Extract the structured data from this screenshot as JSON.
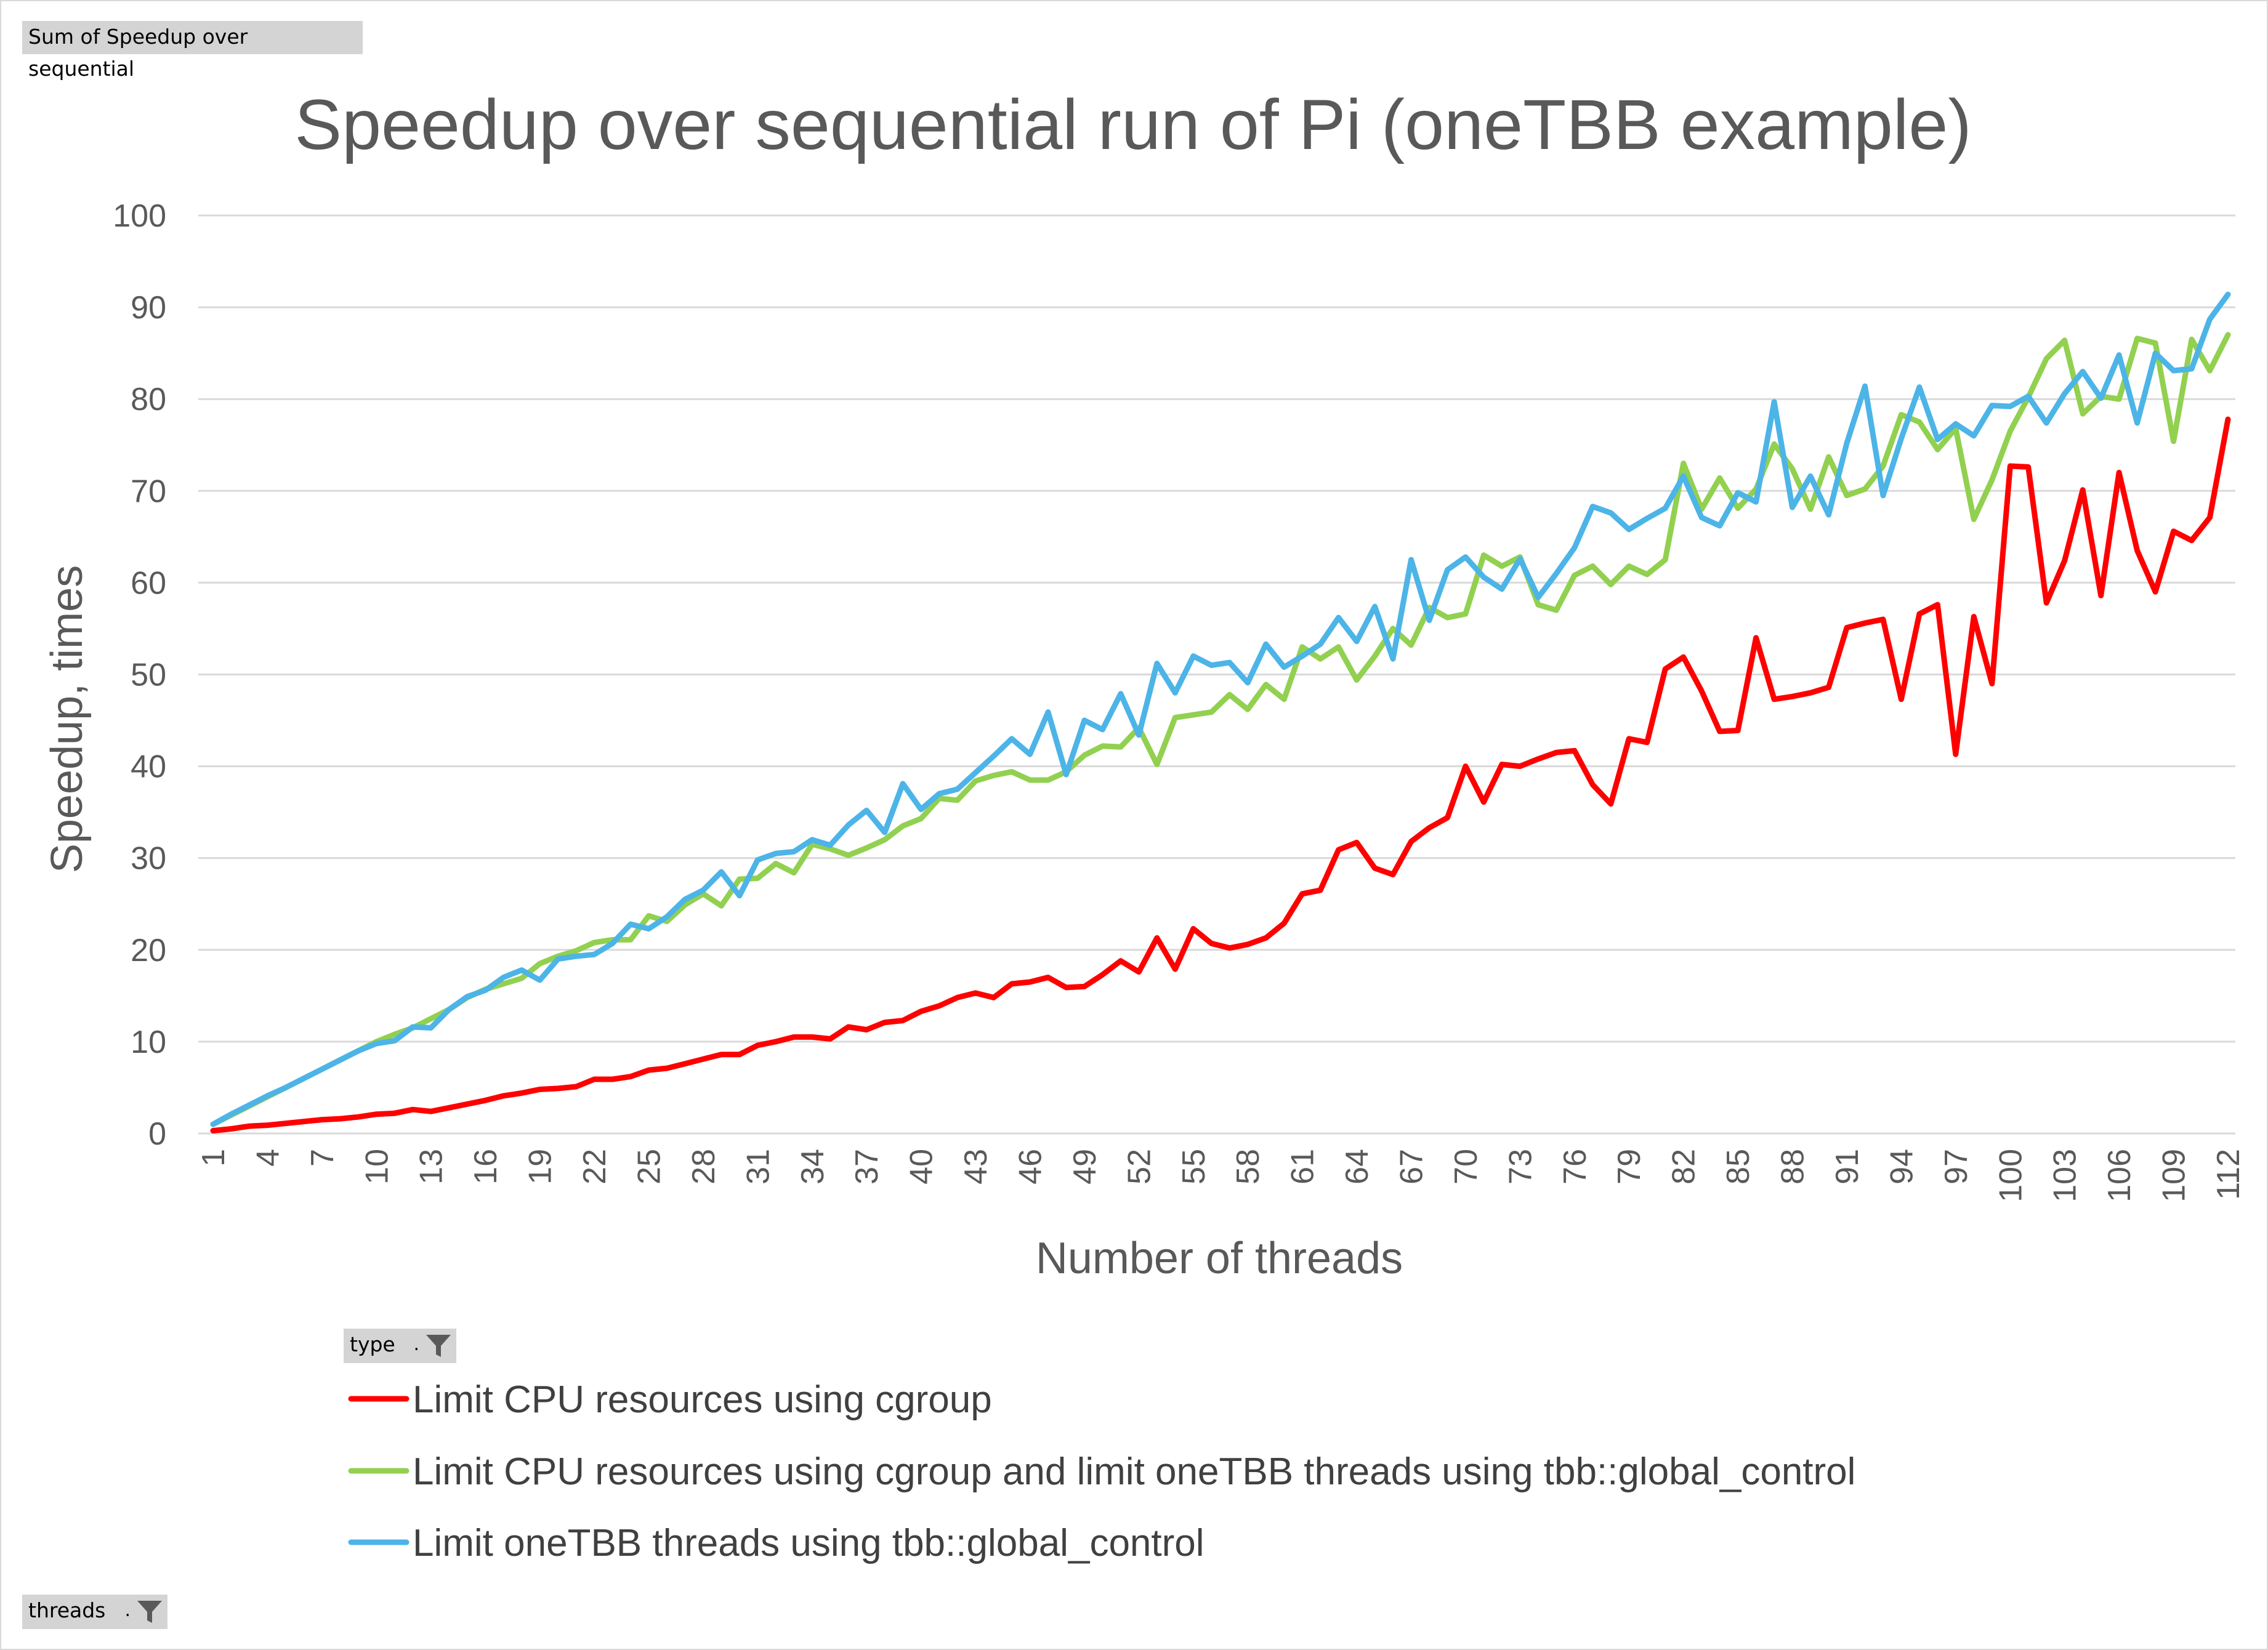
{
  "pivot": {
    "field_button": "Sum of Speedup  over sequential",
    "legend_filter_label": "type",
    "axis_filter_label": "threads"
  },
  "chart_data": {
    "type": "line",
    "title": "Speedup over sequential run of Pi (oneTBB example)",
    "xlabel": "Number of threads",
    "ylabel": "Speedup, times",
    "ylim": [
      0,
      100
    ],
    "yticks": [
      0,
      10,
      20,
      30,
      40,
      50,
      60,
      70,
      80,
      90,
      100
    ],
    "xtick_labels": [
      "1",
      "4",
      "7",
      "10",
      "13",
      "16",
      "19",
      "22",
      "25",
      "28",
      "31",
      "34",
      "37",
      "40",
      "43",
      "46",
      "49",
      "52",
      "55",
      "58",
      "61",
      "64",
      "67",
      "70",
      "73",
      "76",
      "79",
      "82",
      "85",
      "88",
      "91",
      "94",
      "97",
      "100",
      "103",
      "106",
      "109",
      "112"
    ],
    "grid": true,
    "legend_position": "bottom",
    "x": [
      1,
      2,
      3,
      4,
      5,
      6,
      7,
      8,
      9,
      10,
      11,
      12,
      13,
      14,
      15,
      16,
      17,
      18,
      19,
      20,
      21,
      22,
      23,
      24,
      25,
      26,
      27,
      28,
      29,
      30,
      31,
      32,
      33,
      34,
      35,
      36,
      37,
      38,
      39,
      40,
      41,
      42,
      43,
      44,
      45,
      46,
      47,
      48,
      49,
      50,
      51,
      52,
      53,
      54,
      55,
      56,
      57,
      58,
      59,
      60,
      61,
      62,
      63,
      64,
      65,
      66,
      67,
      68,
      69,
      70,
      71,
      72,
      73,
      74,
      75,
      76,
      77,
      78,
      79,
      80,
      81,
      82,
      83,
      84,
      85,
      86,
      87,
      88,
      89,
      90,
      91,
      92,
      93,
      94,
      95,
      96,
      97,
      98,
      99,
      100,
      101,
      102,
      103,
      104,
      105,
      106,
      107,
      108,
      109,
      110,
      111,
      112
    ],
    "series": [
      {
        "name": "Limit CPU resources using cgroup",
        "color": "#ff0000",
        "values": [
          0.3,
          0.5,
          0.8,
          0.9,
          1.1,
          1.3,
          1.5,
          1.6,
          1.8,
          2.1,
          2.2,
          2.6,
          2.4,
          2.8,
          3.2,
          3.6,
          4.1,
          4.4,
          4.8,
          4.9,
          5.1,
          5.9,
          5.9,
          6.2,
          6.9,
          7.1,
          7.6,
          8.1,
          8.6,
          8.6,
          9.6,
          10.0,
          10.5,
          10.5,
          10.3,
          11.6,
          11.3,
          12.1,
          12.3,
          13.3,
          13.9,
          14.8,
          15.3,
          14.8,
          16.3,
          16.5,
          17.0,
          15.9,
          16.0,
          17.3,
          18.8,
          17.6,
          21.3,
          17.9,
          22.3,
          20.7,
          20.2,
          20.6,
          21.3,
          22.9,
          26.1,
          26.5,
          30.9,
          31.7,
          28.9,
          28.2,
          31.8,
          33.3,
          34.4,
          40.0,
          36.1,
          40.2,
          40.0,
          40.8,
          41.5,
          41.7,
          38.0,
          35.9,
          43.0,
          42.6,
          50.6,
          51.9,
          48.2,
          43.8,
          43.9,
          54.0,
          47.3,
          47.6,
          48.0,
          48.6,
          55.1,
          55.6,
          56.0,
          47.3,
          56.6,
          57.6,
          41.3,
          56.3,
          49.0,
          72.7,
          72.6,
          57.8,
          62.4,
          70.1,
          58.6,
          72.0,
          63.5,
          59.0,
          65.6,
          64.6,
          67.1,
          77.8
        ]
      },
      {
        "name": "Limit CPU resources using cgroup and limit oneTBB threads using tbb::global_control",
        "color": "#92d050",
        "values": [
          1.0,
          2.0,
          3.0,
          4.0,
          5.0,
          6.0,
          7.0,
          8.0,
          9.0,
          10.0,
          10.8,
          11.5,
          12.5,
          13.5,
          14.8,
          15.7,
          16.3,
          16.9,
          18.5,
          19.3,
          19.9,
          20.8,
          21.1,
          21.1,
          23.7,
          23.1,
          24.9,
          26.1,
          24.8,
          27.7,
          27.8,
          29.4,
          28.4,
          31.5,
          31.0,
          30.3,
          31.1,
          32.0,
          33.5,
          34.3,
          36.5,
          36.3,
          38.4,
          39.0,
          39.4,
          38.5,
          38.5,
          39.4,
          41.2,
          42.2,
          42.1,
          44.2,
          40.2,
          45.3,
          45.6,
          45.9,
          47.8,
          46.2,
          48.9,
          47.3,
          53.0,
          51.7,
          53.0,
          49.4,
          52.0,
          55.0,
          53.2,
          57.3,
          56.2,
          56.6,
          63.0,
          61.8,
          62.8,
          57.6,
          57.0,
          60.8,
          61.8,
          59.8,
          61.8,
          60.9,
          62.5,
          73.0,
          68.0,
          71.4,
          68.1,
          70.2,
          75.1,
          72.4,
          68.0,
          73.7,
          69.5,
          70.2,
          72.7,
          78.3,
          77.5,
          74.5,
          76.8,
          66.9,
          71.2,
          76.5,
          80.2,
          84.4,
          86.4,
          78.4,
          80.3,
          80.0,
          86.6,
          86.1,
          75.4,
          86.5,
          83.1,
          87.0
        ]
      },
      {
        "name": "Limit oneTBB threads using tbb::global_control",
        "color": "#4cb4e7",
        "values": [
          1.0,
          2.1,
          3.1,
          4.1,
          5.0,
          6.0,
          7.0,
          8.0,
          9.0,
          9.8,
          10.1,
          11.6,
          11.5,
          13.5,
          14.9,
          15.6,
          17.0,
          17.8,
          16.7,
          19.0,
          19.3,
          19.5,
          20.7,
          22.8,
          22.3,
          23.6,
          25.5,
          26.5,
          28.5,
          25.9,
          29.8,
          30.5,
          30.7,
          32.0,
          31.4,
          33.6,
          35.2,
          32.8,
          38.1,
          35.3,
          37.0,
          37.5,
          39.3,
          41.1,
          43.0,
          41.3,
          45.9,
          39.1,
          45.0,
          44.0,
          47.9,
          43.4,
          51.2,
          48.0,
          52.0,
          51.0,
          51.3,
          49.1,
          53.3,
          50.8,
          52.0,
          53.3,
          56.2,
          53.6,
          57.4,
          51.7,
          62.5,
          55.9,
          61.4,
          62.8,
          60.6,
          59.3,
          62.6,
          58.4,
          61.0,
          63.8,
          68.3,
          67.6,
          65.8,
          67.0,
          68.1,
          71.6,
          67.1,
          66.2,
          69.8,
          68.8,
          79.7,
          68.2,
          71.6,
          67.4,
          75.2,
          81.4,
          69.5,
          75.7,
          81.3,
          75.6,
          77.3,
          76.0,
          79.3,
          79.2,
          80.3,
          77.4,
          80.6,
          83.0,
          80.1,
          84.8,
          77.4,
          85.0,
          83.1,
          83.3,
          88.7,
          91.4
        ]
      }
    ]
  }
}
